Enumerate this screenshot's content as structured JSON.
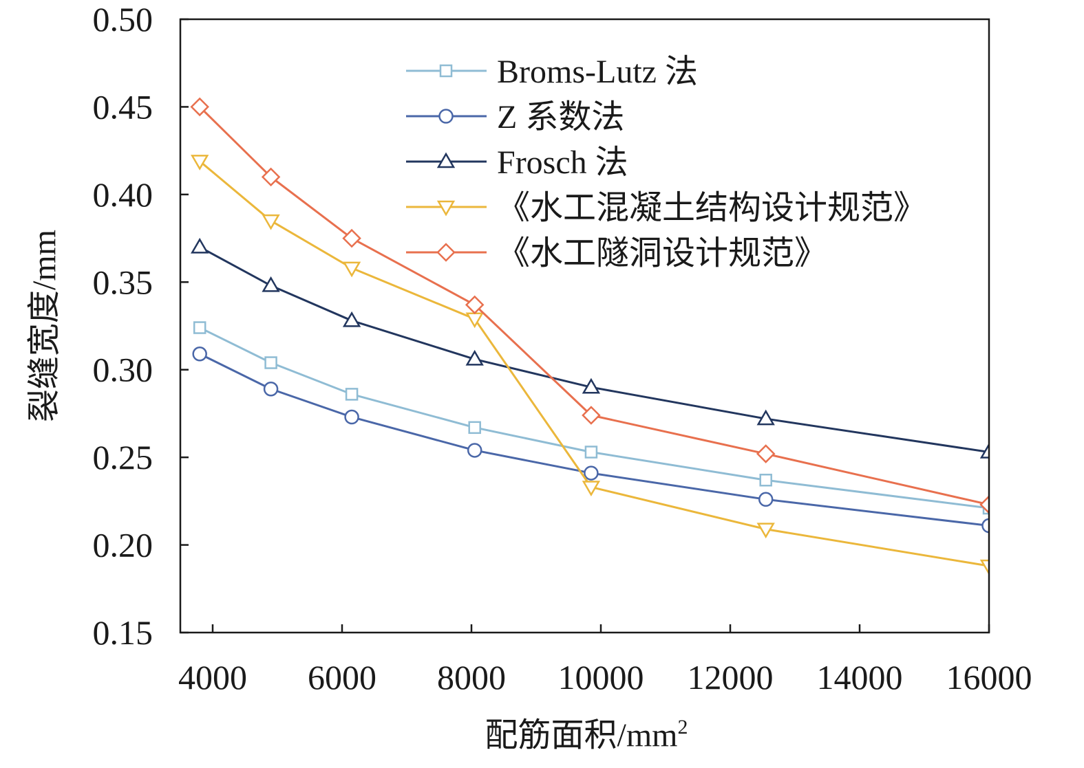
{
  "chart_data": {
    "type": "line",
    "title": "",
    "xlabel": "配筋面积/mm",
    "xlabel_superscript": "2",
    "ylabel": "裂缝宽度/mm",
    "xlim": [
      3500,
      16000
    ],
    "ylim": [
      0.15,
      0.5
    ],
    "xticks": [
      4000,
      6000,
      8000,
      10000,
      12000,
      14000,
      16000
    ],
    "yticks": [
      "0.15",
      "0.20",
      "0.25",
      "0.30",
      "0.35",
      "0.40",
      "0.45",
      "0.50"
    ],
    "grid": false,
    "legend_position": "top-right",
    "x": [
      3800,
      4900,
      6150,
      8050,
      9850,
      12550,
      16000
    ],
    "series": [
      {
        "name": "Broms-Lutz 法",
        "color": "#8fbcd4",
        "marker": "square",
        "values": [
          0.324,
          0.304,
          0.286,
          0.267,
          0.253,
          0.237,
          0.221
        ]
      },
      {
        "name": "Z 系数法",
        "color": "#4a67a8",
        "marker": "circle",
        "values": [
          0.309,
          0.289,
          0.273,
          0.254,
          0.241,
          0.226,
          0.211
        ]
      },
      {
        "name": "Frosch 法",
        "color": "#22365e",
        "marker": "triangle-up",
        "values": [
          0.37,
          0.348,
          0.328,
          0.306,
          0.29,
          0.272,
          0.253
        ]
      },
      {
        "name": "《水工混凝土结构设计规范》",
        "color": "#ebb73b",
        "marker": "triangle-down",
        "values": [
          0.419,
          0.385,
          0.358,
          0.329,
          0.233,
          0.209,
          0.188
        ]
      },
      {
        "name": "《水工隧洞设计规范》",
        "color": "#e8704e",
        "marker": "diamond",
        "values": [
          0.45,
          0.41,
          0.375,
          0.337,
          0.274,
          0.252,
          0.223
        ]
      }
    ]
  }
}
